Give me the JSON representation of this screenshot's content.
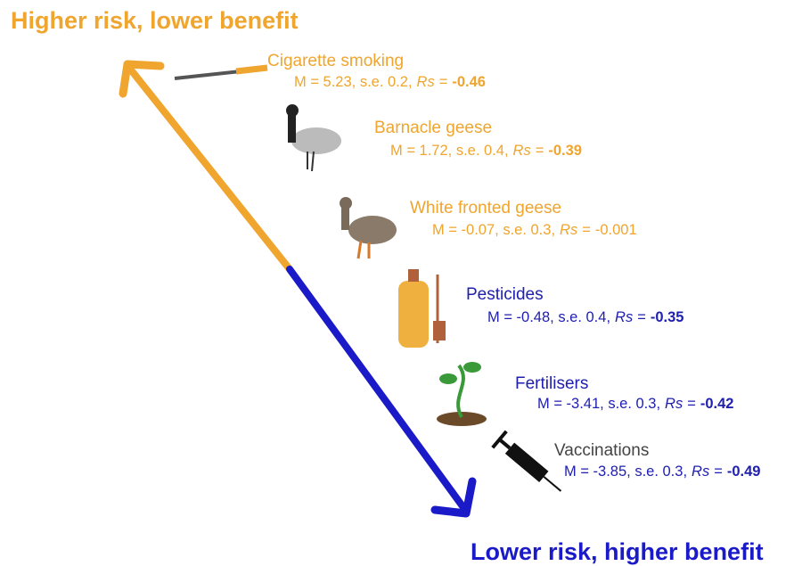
{
  "header": {
    "top": "Higher risk, lower benefit",
    "bottom": "Lower risk, higher benefit"
  },
  "items": [
    {
      "label": "Cigarette smoking",
      "stats": "M = 5.23, s.e. 0.2,",
      "rs_symbol": "Rs",
      "equals": "=",
      "rs_value": "-0.46",
      "rs_bold": true,
      "label_color": "#efa52e",
      "stats_color": "#efa52e"
    },
    {
      "label": "Barnacle geese",
      "stats": "M = 1.72, s.e. 0.4,",
      "rs_symbol": "Rs",
      "equals": "=",
      "rs_value": "-0.39",
      "rs_bold": true,
      "label_color": "#efa52e",
      "stats_color": "#efa52e"
    },
    {
      "label": "White fronted geese",
      "stats": "M = -0.07, s.e. 0.3,",
      "rs_symbol": "Rs",
      "equals": "=",
      "rs_value": "-0.001",
      "rs_bold": false,
      "label_color": "#efa52e",
      "stats_color": "#efa52e"
    },
    {
      "label": "Pesticides",
      "stats": "M = -0.48, s.e. 0.4,",
      "rs_symbol": "Rs",
      "equals": "=",
      "rs_value": "-0.35",
      "rs_bold": true,
      "label_color": "#2020b0",
      "stats_color": "#2020b0"
    },
    {
      "label": "Fertilisers",
      "stats": "M = -3.41, s.e. 0.3,",
      "rs_symbol": "Rs",
      "equals": "=",
      "rs_value": "-0.42",
      "rs_bold": true,
      "label_color": "#2020b0",
      "stats_color": "#2020b0"
    },
    {
      "label": "Vaccinations",
      "stats": "M = -3.85, s.e. 0.3,",
      "rs_symbol": "Rs",
      "equals": "=",
      "rs_value": "-0.49",
      "rs_bold": true,
      "label_color": "#444444",
      "stats_color": "#2020b0"
    }
  ]
}
